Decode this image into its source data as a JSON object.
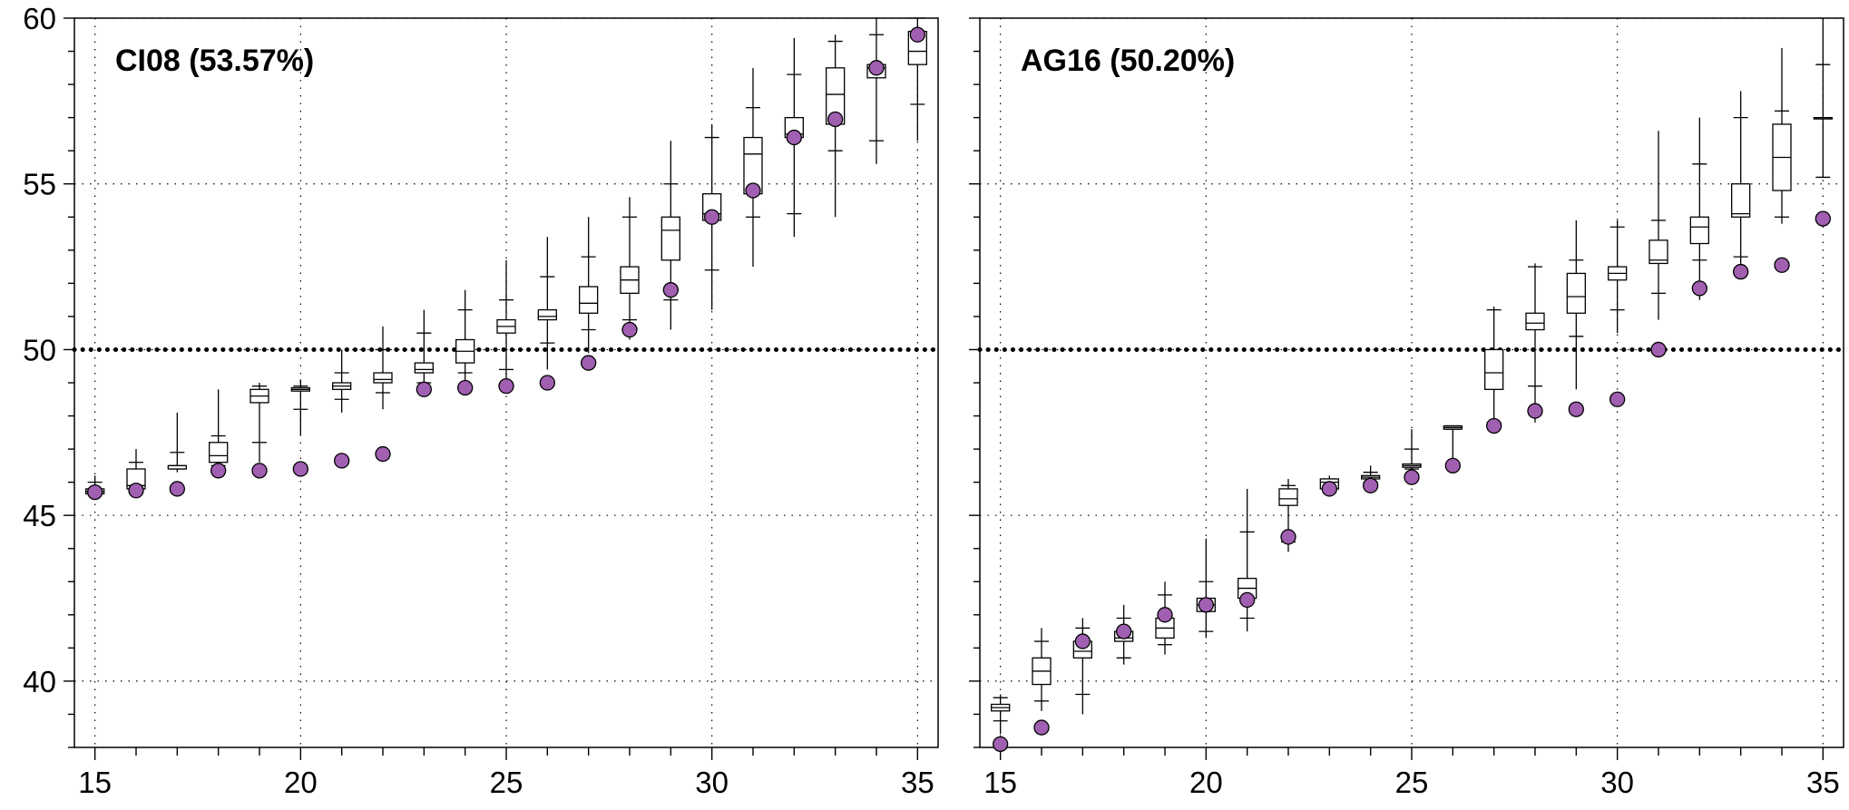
{
  "colors": {
    "point": "#a05fb0",
    "axis": "#000000",
    "grid": "#000000",
    "box_fill": "#ffffff"
  },
  "chart_data": [
    {
      "type": "box",
      "title": "CI08 (53.57%)",
      "xlim": [
        14.5,
        35.5
      ],
      "ylim": [
        38,
        60
      ],
      "xticks": [
        15,
        20,
        25,
        30,
        35
      ],
      "yticks": [
        40,
        45,
        50,
        55,
        60
      ],
      "reference_line": 50,
      "grid": true,
      "boxes": [
        {
          "x": 15,
          "q1": 45.65,
          "med": 45.72,
          "q3": 45.8,
          "wlo": 45.6,
          "whi": 46.2,
          "capLo": 45.7,
          "capHi": 46.0
        },
        {
          "x": 16,
          "q1": 45.8,
          "med": 45.9,
          "q3": 46.4,
          "wlo": 45.8,
          "whi": 47.0,
          "capLo": 45.8,
          "capHi": 46.6
        },
        {
          "x": 17,
          "q1": 46.4,
          "med": 46.5,
          "q3": 46.5,
          "wlo": 46.3,
          "whi": 48.1,
          "capLo": 46.4,
          "capHi": 46.9
        },
        {
          "x": 18,
          "q1": 46.6,
          "med": 46.8,
          "q3": 47.2,
          "wlo": 46.4,
          "whi": 48.8,
          "capLo": 46.5,
          "capHi": 47.4
        },
        {
          "x": 19,
          "q1": 48.4,
          "med": 48.6,
          "q3": 48.8,
          "wlo": 46.6,
          "whi": 49.0,
          "capLo": 47.2,
          "capHi": 48.9
        },
        {
          "x": 20,
          "q1": 48.75,
          "med": 48.8,
          "q3": 48.85,
          "wlo": 47.4,
          "whi": 49.1,
          "capLo": 48.2,
          "capHi": 48.9
        },
        {
          "x": 21,
          "q1": 48.8,
          "med": 48.9,
          "q3": 49.0,
          "wlo": 48.1,
          "whi": 50.0,
          "capLo": 48.5,
          "capHi": 49.3
        },
        {
          "x": 22,
          "q1": 49.0,
          "med": 49.1,
          "q3": 49.3,
          "wlo": 48.2,
          "whi": 50.7,
          "capLo": 48.7,
          "capHi": 50.0
        },
        {
          "x": 23,
          "q1": 49.3,
          "med": 49.4,
          "q3": 49.6,
          "wlo": 48.8,
          "whi": 51.2,
          "capLo": 49.0,
          "capHi": 50.5
        },
        {
          "x": 24,
          "q1": 49.6,
          "med": 49.95,
          "q3": 50.3,
          "wlo": 49.0,
          "whi": 51.8,
          "capLo": 49.3,
          "capHi": 51.2
        },
        {
          "x": 25,
          "q1": 50.5,
          "med": 50.7,
          "q3": 50.9,
          "wlo": 49.0,
          "whi": 52.7,
          "capLo": 49.4,
          "capHi": 51.5
        },
        {
          "x": 26,
          "q1": 50.9,
          "med": 51.0,
          "q3": 51.2,
          "wlo": 49.4,
          "whi": 53.4,
          "capLo": 50.2,
          "capHi": 52.2
        },
        {
          "x": 27,
          "q1": 51.1,
          "med": 51.4,
          "q3": 51.9,
          "wlo": 49.9,
          "whi": 54.0,
          "capLo": 50.6,
          "capHi": 52.8
        },
        {
          "x": 28,
          "q1": 51.7,
          "med": 52.1,
          "q3": 52.5,
          "wlo": 50.3,
          "whi": 54.6,
          "capLo": 50.9,
          "capHi": 54.0
        },
        {
          "x": 29,
          "q1": 52.7,
          "med": 53.6,
          "q3": 54.0,
          "wlo": 50.6,
          "whi": 56.3,
          "capLo": 51.5,
          "capHi": 55.0
        },
        {
          "x": 30,
          "q1": 53.9,
          "med": 54.1,
          "q3": 54.7,
          "wlo": 51.2,
          "whi": 56.8,
          "capLo": 52.4,
          "capHi": 56.4
        },
        {
          "x": 31,
          "q1": 54.7,
          "med": 55.9,
          "q3": 56.4,
          "wlo": 52.5,
          "whi": 58.5,
          "capLo": 54.0,
          "capHi": 57.3
        },
        {
          "x": 32,
          "q1": 56.4,
          "med": 56.5,
          "q3": 57.0,
          "wlo": 53.4,
          "whi": 59.4,
          "capLo": 54.1,
          "capHi": 58.3
        },
        {
          "x": 33,
          "q1": 56.8,
          "med": 57.7,
          "q3": 58.5,
          "wlo": 54.0,
          "whi": 59.5,
          "capLo": 56.0,
          "capHi": 59.3
        },
        {
          "x": 34,
          "q1": 58.2,
          "med": 58.5,
          "q3": 58.6,
          "wlo": 55.6,
          "whi": 60.0,
          "capLo": 56.3,
          "capHi": 59.5
        },
        {
          "x": 35,
          "q1": 58.6,
          "med": 59.0,
          "q3": 59.6,
          "wlo": 56.3,
          "whi": 60.0,
          "capLo": 57.4,
          "capHi": 60.0
        }
      ],
      "points": [
        {
          "x": 15,
          "y": 45.7
        },
        {
          "x": 16,
          "y": 45.75
        },
        {
          "x": 17,
          "y": 45.8
        },
        {
          "x": 18,
          "y": 46.35
        },
        {
          "x": 19,
          "y": 46.35
        },
        {
          "x": 20,
          "y": 46.4
        },
        {
          "x": 21,
          "y": 46.65
        },
        {
          "x": 22,
          "y": 46.85
        },
        {
          "x": 23,
          "y": 48.8
        },
        {
          "x": 24,
          "y": 48.85
        },
        {
          "x": 25,
          "y": 48.9
        },
        {
          "x": 26,
          "y": 49.0
        },
        {
          "x": 27,
          "y": 49.6
        },
        {
          "x": 28,
          "y": 50.6
        },
        {
          "x": 29,
          "y": 51.8
        },
        {
          "x": 30,
          "y": 54.0
        },
        {
          "x": 31,
          "y": 54.8
        },
        {
          "x": 32,
          "y": 56.4
        },
        {
          "x": 33,
          "y": 56.95
        },
        {
          "x": 34,
          "y": 58.5
        },
        {
          "x": 35,
          "y": 59.5
        }
      ]
    },
    {
      "type": "box",
      "title": "AG16 (50.20%)",
      "xlim": [
        14.5,
        35.5
      ],
      "ylim": [
        38,
        60
      ],
      "xticks": [
        15,
        20,
        25,
        30,
        35
      ],
      "yticks": [
        40,
        45,
        50,
        55,
        60
      ],
      "reference_line": 50,
      "grid": true,
      "boxes": [
        {
          "x": 15,
          "q1": 39.1,
          "med": 39.2,
          "q3": 39.3,
          "wlo": 38.4,
          "whi": 39.6,
          "capLo": 38.8,
          "capHi": 39.5
        },
        {
          "x": 16,
          "q1": 39.9,
          "med": 40.3,
          "q3": 40.7,
          "wlo": 39.1,
          "whi": 41.6,
          "capLo": 39.4,
          "capHi": 41.2
        },
        {
          "x": 17,
          "q1": 40.7,
          "med": 40.9,
          "q3": 41.2,
          "wlo": 39.0,
          "whi": 41.9,
          "capLo": 39.6,
          "capHi": 41.6
        },
        {
          "x": 18,
          "q1": 41.2,
          "med": 41.3,
          "q3": 41.5,
          "wlo": 40.5,
          "whi": 42.3,
          "capLo": 40.7,
          "capHi": 41.9
        },
        {
          "x": 19,
          "q1": 41.3,
          "med": 41.6,
          "q3": 41.9,
          "wlo": 40.8,
          "whi": 43.0,
          "capLo": 41.1,
          "capHi": 42.6
        },
        {
          "x": 20,
          "q1": 42.1,
          "med": 42.3,
          "q3": 42.5,
          "wlo": 41.3,
          "whi": 44.3,
          "capLo": 41.5,
          "capHi": 43.0
        },
        {
          "x": 21,
          "q1": 42.5,
          "med": 42.8,
          "q3": 43.1,
          "wlo": 41.5,
          "whi": 45.8,
          "capLo": 41.9,
          "capHi": 44.5
        },
        {
          "x": 22,
          "q1": 45.3,
          "med": 45.5,
          "q3": 45.8,
          "wlo": 43.9,
          "whi": 46.1,
          "capLo": 44.2,
          "capHi": 45.9
        },
        {
          "x": 23,
          "q1": 45.8,
          "med": 46.0,
          "q3": 46.1,
          "wlo": 45.7,
          "whi": 46.2,
          "capLo": 45.8,
          "capHi": 46.1
        },
        {
          "x": 24,
          "q1": 46.1,
          "med": 46.15,
          "q3": 46.2,
          "wlo": 45.9,
          "whi": 46.5,
          "capLo": 46.0,
          "capHi": 46.3
        },
        {
          "x": 25,
          "q1": 46.45,
          "med": 46.5,
          "q3": 46.55,
          "wlo": 46.2,
          "whi": 47.6,
          "capLo": 46.4,
          "capHi": 47.0
        },
        {
          "x": 26,
          "q1": 47.6,
          "med": 47.65,
          "q3": 47.7,
          "wlo": 46.5,
          "whi": 47.7,
          "capLo": 47.6,
          "capHi": 47.7
        },
        {
          "x": 27,
          "q1": 48.8,
          "med": 49.3,
          "q3": 50.0,
          "wlo": 47.6,
          "whi": 51.3,
          "capLo": 47.8,
          "capHi": 51.2
        },
        {
          "x": 28,
          "q1": 50.6,
          "med": 50.8,
          "q3": 51.1,
          "wlo": 47.8,
          "whi": 52.6,
          "capLo": 48.9,
          "capHi": 52.5
        },
        {
          "x": 29,
          "q1": 51.1,
          "med": 51.6,
          "q3": 52.3,
          "wlo": 48.8,
          "whi": 53.9,
          "capLo": 50.4,
          "capHi": 52.7
        },
        {
          "x": 30,
          "q1": 52.1,
          "med": 52.3,
          "q3": 52.5,
          "wlo": 50.5,
          "whi": 53.9,
          "capLo": 51.2,
          "capHi": 53.7
        },
        {
          "x": 31,
          "q1": 52.6,
          "med": 52.7,
          "q3": 53.3,
          "wlo": 50.9,
          "whi": 56.6,
          "capLo": 51.7,
          "capHi": 53.9
        },
        {
          "x": 32,
          "q1": 53.2,
          "med": 53.7,
          "q3": 54.0,
          "wlo": 51.5,
          "whi": 57.0,
          "capLo": 52.7,
          "capHi": 55.6
        },
        {
          "x": 33,
          "q1": 54.0,
          "med": 54.1,
          "q3": 55.0,
          "wlo": 52.4,
          "whi": 57.8,
          "capLo": 52.8,
          "capHi": 57.0
        },
        {
          "x": 34,
          "q1": 54.8,
          "med": 55.8,
          "q3": 56.8,
          "wlo": 53.8,
          "whi": 59.1,
          "capLo": 54.0,
          "capHi": 57.2
        },
        {
          "x": 35,
          "q1": 57.0,
          "med": 57.0,
          "q3": 57.0,
          "wlo": 55.2,
          "whi": 60.0,
          "capLo": 55.2,
          "capHi": 58.6
        }
      ],
      "points": [
        {
          "x": 15,
          "y": 38.1
        },
        {
          "x": 16,
          "y": 38.6
        },
        {
          "x": 17,
          "y": 41.2
        },
        {
          "x": 18,
          "y": 41.5
        },
        {
          "x": 19,
          "y": 42.0
        },
        {
          "x": 20,
          "y": 42.3
        },
        {
          "x": 21,
          "y": 42.45
        },
        {
          "x": 22,
          "y": 44.35
        },
        {
          "x": 23,
          "y": 45.8
        },
        {
          "x": 24,
          "y": 45.9
        },
        {
          "x": 25,
          "y": 46.15
        },
        {
          "x": 26,
          "y": 46.5
        },
        {
          "x": 27,
          "y": 47.7
        },
        {
          "x": 28,
          "y": 48.15
        },
        {
          "x": 29,
          "y": 48.2
        },
        {
          "x": 30,
          "y": 48.5
        },
        {
          "x": 31,
          "y": 50.0
        },
        {
          "x": 32,
          "y": 51.85
        },
        {
          "x": 33,
          "y": 52.35
        },
        {
          "x": 34,
          "y": 52.55
        },
        {
          "x": 35,
          "y": 53.95
        }
      ]
    }
  ]
}
